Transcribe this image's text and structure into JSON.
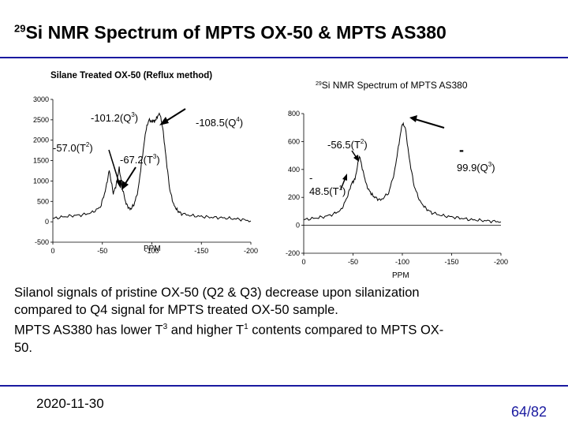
{
  "slide": {
    "title_pre": "29",
    "title_post": "Si NMR Spectrum of MPTS OX-50 & MPTS AS380",
    "caption_line1": "Silanol signals of pristine OX-50 (Q2 & Q3) decrease upon silanization",
    "caption_line2": "compared to Q4 signal for MPTS treated OX-50 sample.",
    "caption_line3_a": "MPTS AS380 has lower T",
    "caption_line3_sup1": "3",
    "caption_line3_b": " and higher T",
    "caption_line3_sup2": "1",
    "caption_line3_c": " contents compared to MPTS OX-",
    "caption_line4": "50.",
    "date": "2020-11-30",
    "page": "64/82"
  },
  "chart_data": [
    {
      "type": "line",
      "title": "Silane Treated OX-50 (Reflux method)",
      "xlabel": "PPM",
      "ylabel": "",
      "xlim": [
        0,
        -200
      ],
      "ylim": [
        -500,
        3000
      ],
      "x_ticks": [
        "0",
        "-50",
        "-100",
        "-150",
        "-200"
      ],
      "y_ticks": [
        "3000",
        "2500",
        "2000",
        "1500",
        "1000",
        "500",
        "0",
        "-500"
      ],
      "grid": false,
      "series": [
        {
          "x": [
            0,
            -10,
            -20,
            -30,
            -40,
            -48,
            -53,
            -57,
            -61,
            -64,
            -67,
            -70,
            -74,
            -78,
            -82,
            -86,
            -90,
            -94,
            -97,
            -100,
            -101,
            -103,
            -105,
            -108,
            -111,
            -114,
            -118,
            -122,
            -126,
            -130,
            -140,
            -150,
            -160,
            -170,
            -180,
            -190,
            -200
          ],
          "y": [
            80,
            120,
            150,
            170,
            230,
            360,
            760,
            1260,
            700,
            900,
            1320,
            840,
            440,
            300,
            420,
            760,
            1520,
            2250,
            2500,
            2450,
            2480,
            2460,
            2560,
            2660,
            2300,
            1640,
            800,
            420,
            270,
            200,
            150,
            130,
            110,
            100,
            80,
            60,
            20
          ]
        }
      ],
      "annotations": [
        {
          "label": "-101.2(Q",
          "sup": "3",
          "end": ")"
        },
        {
          "label": "-108.5(Q",
          "sup": "4",
          "end": ")"
        },
        {
          "label": "-57.0(T",
          "sup": "2",
          "end": ")"
        },
        {
          "label": "-67.2(T",
          "sup": "3",
          "end": ")"
        }
      ]
    },
    {
      "type": "line",
      "title_pre": "29",
      "title": "Si NMR Spectrum of MPTS AS380",
      "xlabel": "PPM",
      "ylabel": "",
      "xlim": [
        0,
        -200
      ],
      "ylim": [
        -200,
        800
      ],
      "x_ticks": [
        "0",
        "-50",
        "-100",
        "-150",
        "-200"
      ],
      "y_ticks": [
        "800",
        "600",
        "400",
        "200",
        "0",
        "-200"
      ],
      "grid": false,
      "series": [
        {
          "x": [
            0,
            -10,
            -20,
            -30,
            -38,
            -44,
            -48.5,
            -52,
            -56.5,
            -60,
            -64,
            -68,
            -72,
            -78,
            -86,
            -92,
            -96,
            -99.9,
            -103,
            -107,
            -112,
            -118,
            -124,
            -130,
            -140,
            -150,
            -160,
            -170,
            -180,
            -190,
            -200
          ],
          "y": [
            40,
            50,
            60,
            80,
            110,
            200,
            300,
            330,
            500,
            390,
            280,
            230,
            200,
            180,
            230,
            380,
            560,
            730,
            700,
            480,
            280,
            170,
            120,
            90,
            70,
            60,
            50,
            40,
            35,
            30,
            25
          ]
        }
      ],
      "annotations": [
        {
          "label": "-56.5(T",
          "sup": "2",
          "end": ")"
        },
        {
          "label_pre": "-",
          "label": "99.9(Q",
          "sup": "3",
          "end": ")"
        },
        {
          "label_pre": "-",
          "label": "48.5(T",
          "sup": "1",
          "end": ")"
        }
      ]
    }
  ]
}
